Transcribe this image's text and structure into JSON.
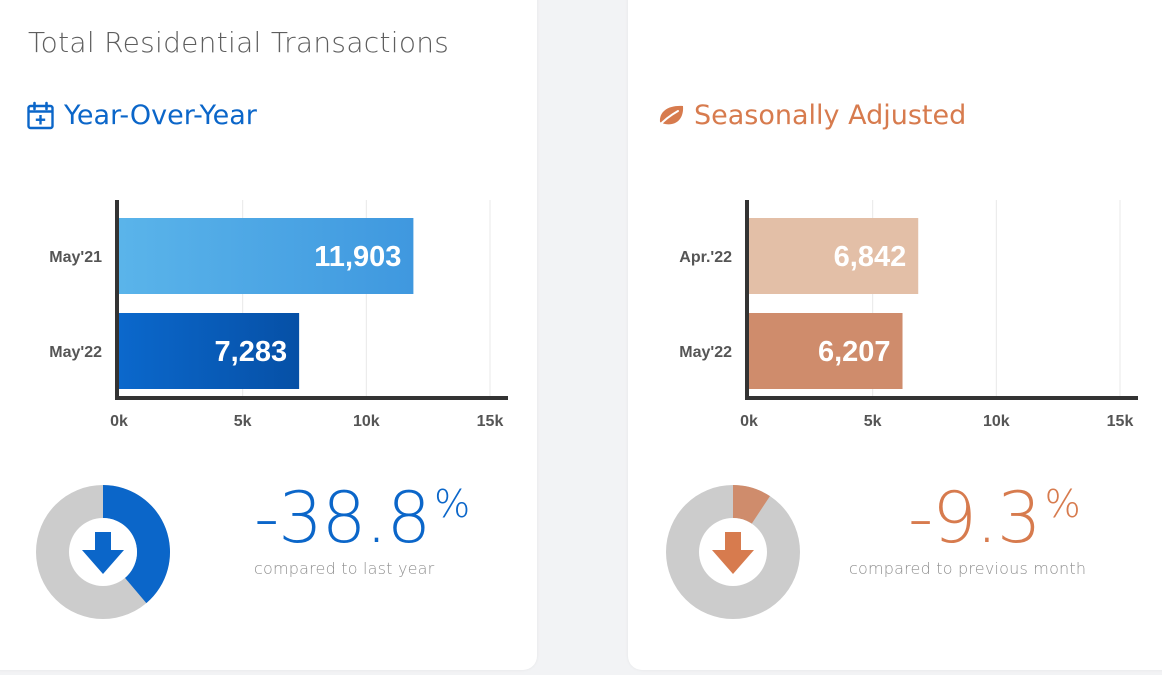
{
  "main_title": "Total Residential Transactions",
  "colors": {
    "blue": "#0b66c9",
    "blue_light": "#5ab4ea",
    "blue_dark": "#0650a6",
    "orange": "#d77b4e",
    "orange_light": "#e3bfa7",
    "orange_mid": "#cf8c6c",
    "donut_track": "#cccccc",
    "axis": "#333333",
    "grid": "#e8e8e8"
  },
  "yoy": {
    "title": "Year-Over-Year",
    "icon": "calendar-plus-icon",
    "change_value": "-38.8",
    "percent_sign": "%",
    "caption": "compared to last year",
    "donut_fraction": 0.388,
    "arrow_icon": "arrow-down-icon"
  },
  "seasonal": {
    "title": "Seasonally Adjusted",
    "icon": "leaf-icon",
    "change_value": "-9.3",
    "percent_sign": "%",
    "caption": "compared to previous month",
    "donut_fraction": 0.093,
    "arrow_icon": "arrow-down-icon"
  },
  "chart_data": [
    {
      "type": "bar",
      "orientation": "horizontal",
      "categories": [
        "May'21",
        "May'22"
      ],
      "values": [
        11903,
        7283
      ],
      "value_labels": [
        "11,903",
        "7,283"
      ],
      "xlim": [
        0,
        15000
      ],
      "xticks": [
        "0k",
        "5k",
        "10k",
        "15k"
      ],
      "grid": true
    },
    {
      "type": "bar",
      "orientation": "horizontal",
      "categories": [
        "Apr.'22",
        "May'22"
      ],
      "values": [
        6842,
        6207
      ],
      "value_labels": [
        "6,842",
        "6,207"
      ],
      "xlim": [
        0,
        15000
      ],
      "xticks": [
        "0k",
        "5k",
        "10k",
        "15k"
      ],
      "grid": true
    }
  ]
}
